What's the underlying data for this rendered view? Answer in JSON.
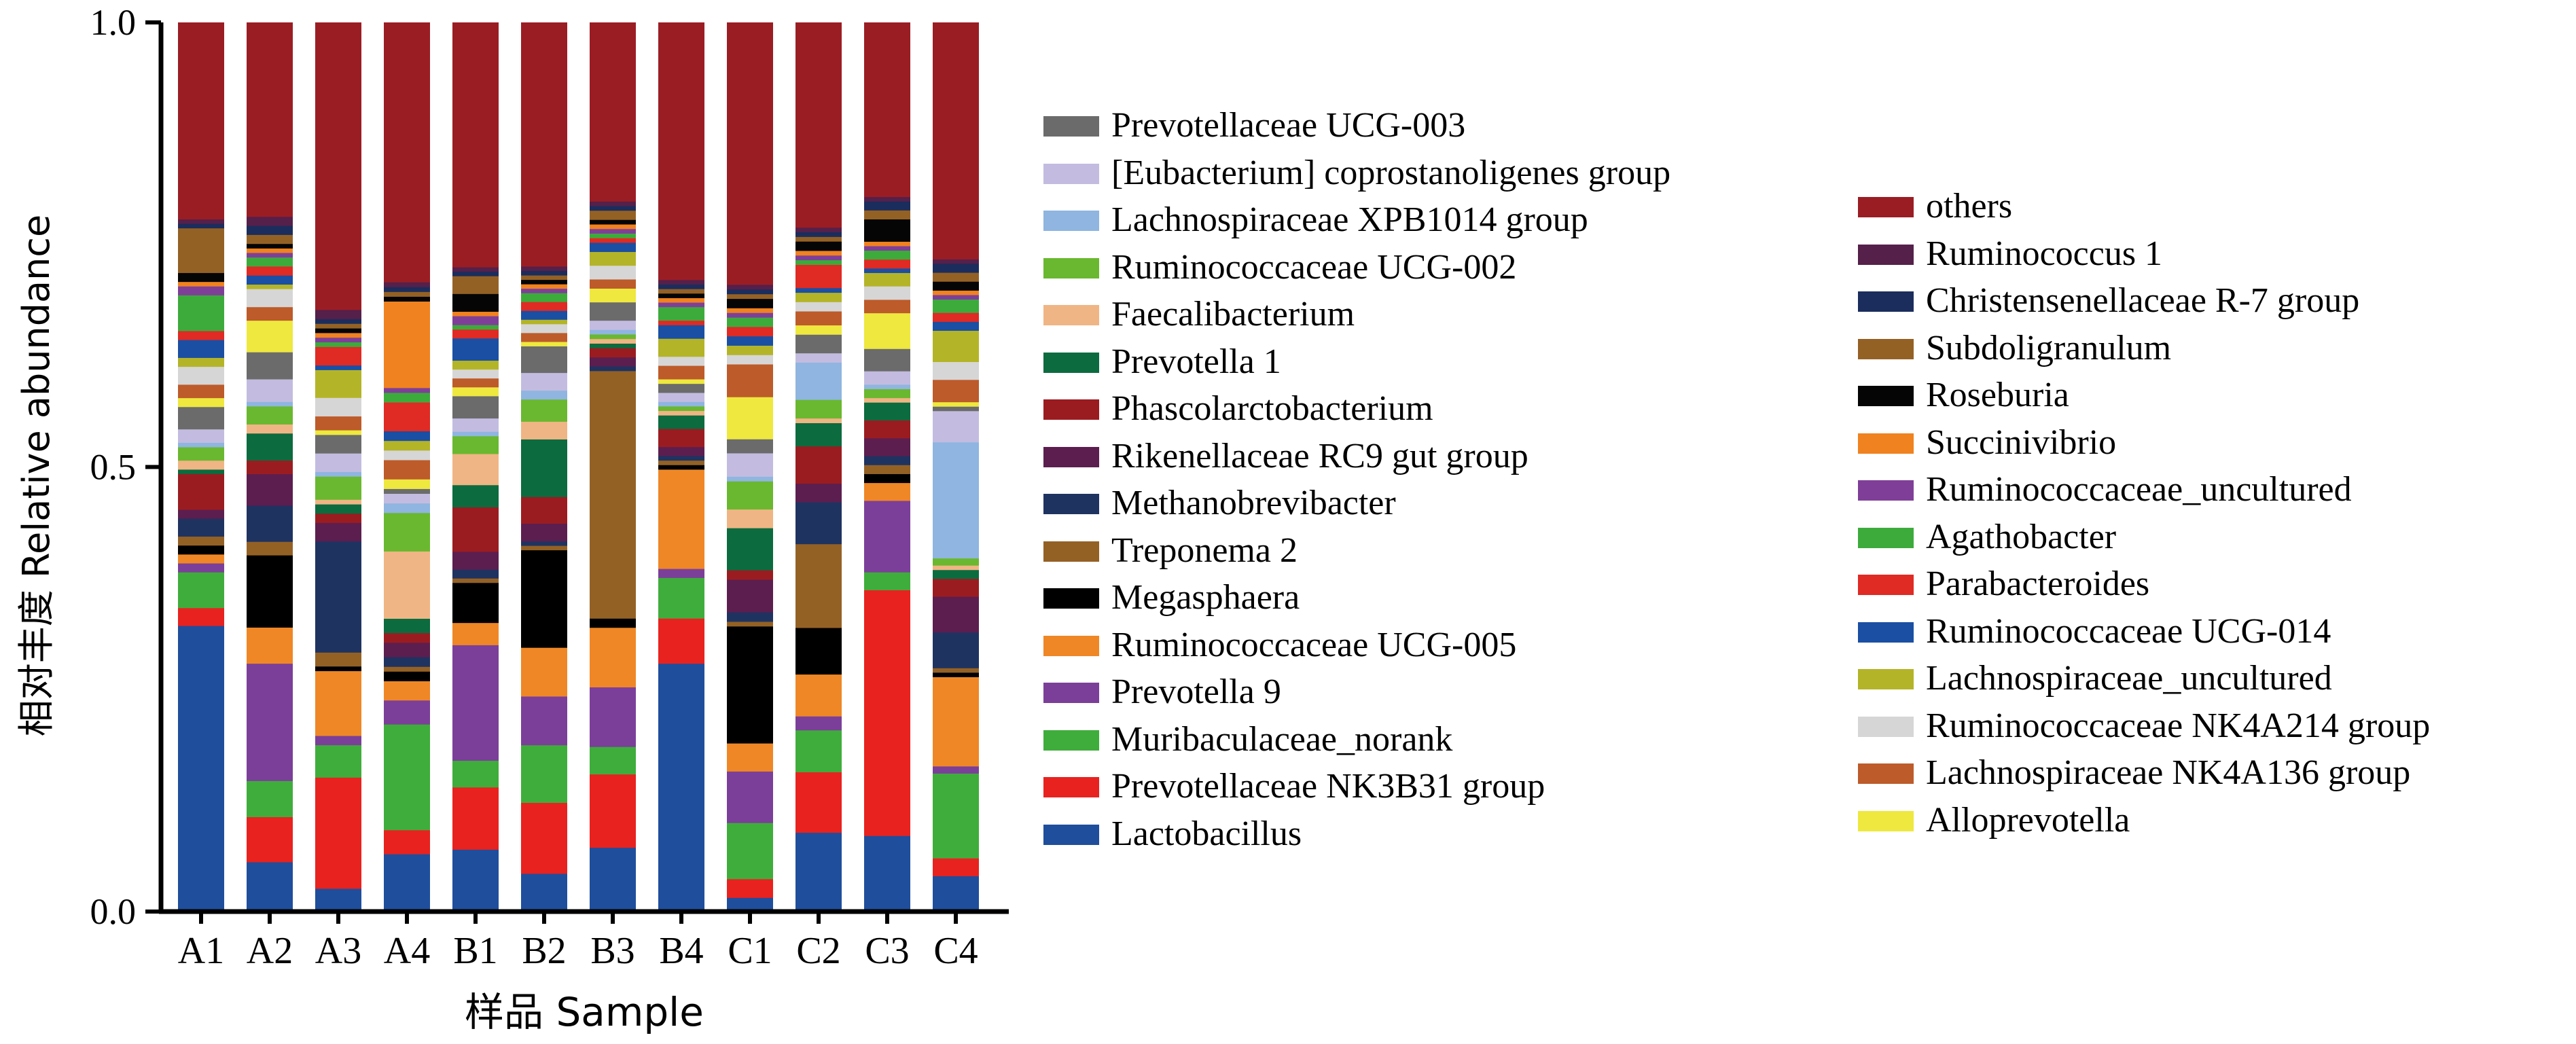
{
  "chart_data": {
    "type": "bar",
    "stacked": true,
    "ylabel": "相对丰度  Relative abundance",
    "xlabel": "样品  Sample",
    "ylim": [
      0,
      1.0
    ],
    "y_ticks": [
      "0.0",
      "0.5",
      "1.0"
    ],
    "categories": [
      "A1",
      "A2",
      "A3",
      "A4",
      "B1",
      "B2",
      "B3",
      "B4",
      "C1",
      "C2",
      "C3",
      "C4"
    ],
    "series": [
      {
        "name": "Lactobacillus",
        "color": "#1f4e9c",
        "values": [
          0.32,
          0.055,
          0.025,
          0.06,
          0.07,
          0.043,
          0.07,
          0.275,
          0.015,
          0.085,
          0.085,
          0.04
        ]
      },
      {
        "name": "Prevotellaceae NK3B31 group",
        "color": "#e8221f",
        "values": [
          0.02,
          0.05,
          0.12,
          0.025,
          0.07,
          0.08,
          0.08,
          0.05,
          0.02,
          0.065,
          0.275,
          0.02
        ]
      },
      {
        "name": "Muribaculaceae_norank",
        "color": "#3fad3c",
        "values": [
          0.04,
          0.04,
          0.035,
          0.11,
          0.03,
          0.065,
          0.03,
          0.045,
          0.06,
          0.045,
          0.02,
          0.095
        ]
      },
      {
        "name": "Prevotella 9",
        "color": "#7b3f99",
        "values": [
          0.01,
          0.13,
          0.01,
          0.025,
          0.13,
          0.055,
          0.065,
          0.01,
          0.055,
          0.015,
          0.08,
          0.008
        ]
      },
      {
        "name": "Ruminococcaceae UCG-005",
        "color": "#ef8726",
        "values": [
          0.01,
          0.04,
          0.07,
          0.02,
          0.025,
          0.055,
          0.065,
          0.11,
          0.03,
          0.045,
          0.02,
          0.1
        ]
      },
      {
        "name": "Megasphaera",
        "color": "#000000",
        "values": [
          0.01,
          0.08,
          0.005,
          0.01,
          0.045,
          0.11,
          0.01,
          0.005,
          0.125,
          0.05,
          0.01,
          0.005
        ]
      },
      {
        "name": "Treponema 2",
        "color": "#946125",
        "values": [
          0.01,
          0.015,
          0.015,
          0.005,
          0.005,
          0.005,
          0.27,
          0.005,
          0.005,
          0.09,
          0.01,
          0.005
        ]
      },
      {
        "name": "Methanobrevibacter",
        "color": "#1f3361",
        "values": [
          0.02,
          0.04,
          0.12,
          0.01,
          0.01,
          0.005,
          0.005,
          0.005,
          0.01,
          0.045,
          0.01,
          0.04
        ]
      },
      {
        "name": "Rikenellaceae RC9 gut group",
        "color": "#5c1e4f",
        "values": [
          0.01,
          0.035,
          0.02,
          0.015,
          0.02,
          0.02,
          0.01,
          0.01,
          0.035,
          0.02,
          0.02,
          0.04
        ]
      },
      {
        "name": "Phascolarctobacterium",
        "color": "#9b1c20",
        "values": [
          0.04,
          0.015,
          0.01,
          0.01,
          0.05,
          0.03,
          0.01,
          0.02,
          0.01,
          0.04,
          0.02,
          0.02
        ]
      },
      {
        "name": "Prevotella 1",
        "color": "#0c6b3f",
        "values": [
          0.005,
          0.03,
          0.01,
          0.015,
          0.025,
          0.065,
          0.005,
          0.015,
          0.045,
          0.025,
          0.02,
          0.01
        ]
      },
      {
        "name": "Faecalibacterium",
        "color": "#f0b584",
        "values": [
          0.01,
          0.01,
          0.005,
          0.07,
          0.035,
          0.02,
          0.005,
          0.005,
          0.02,
          0.005,
          0.005,
          0.005
        ]
      },
      {
        "name": "Ruminococcaceae UCG-002",
        "color": "#6ab82f",
        "values": [
          0.015,
          0.02,
          0.025,
          0.04,
          0.02,
          0.025,
          0.005,
          0.005,
          0.03,
          0.02,
          0.01,
          0.008
        ]
      },
      {
        "name": "Lachnospiraceae XPB1014 group",
        "color": "#8fb5e0",
        "values": [
          0.005,
          0.005,
          0.005,
          0.01,
          0.005,
          0.01,
          0.005,
          0.005,
          0.005,
          0.04,
          0.005,
          0.13
        ]
      },
      {
        "name": "[Eubacterium] coprostanoligenes group",
        "color": "#c3bce0",
        "values": [
          0.015,
          0.025,
          0.02,
          0.01,
          0.015,
          0.02,
          0.01,
          0.01,
          0.025,
          0.01,
          0.015,
          0.035
        ]
      },
      {
        "name": "Prevotellaceae UCG-003",
        "color": "#6b6b6b",
        "values": [
          0.025,
          0.03,
          0.02,
          0.005,
          0.025,
          0.03,
          0.02,
          0.01,
          0.015,
          0.02,
          0.025,
          0.005
        ]
      },
      {
        "name": "Alloprevotella",
        "color": "#eee83f",
        "values": [
          0.01,
          0.035,
          0.005,
          0.01,
          0.01,
          0.005,
          0.015,
          0.005,
          0.045,
          0.01,
          0.04,
          0.005
        ]
      },
      {
        "name": "Lachnospiraceae NK4A136 group",
        "color": "#bd5b2a",
        "values": [
          0.015,
          0.015,
          0.015,
          0.02,
          0.01,
          0.01,
          0.01,
          0.015,
          0.035,
          0.015,
          0.015,
          0.025
        ]
      },
      {
        "name": "Ruminococcaceae NK4A214 group",
        "color": "#d6d6d6",
        "values": [
          0.02,
          0.02,
          0.02,
          0.01,
          0.01,
          0.01,
          0.015,
          0.01,
          0.01,
          0.01,
          0.015,
          0.02
        ]
      },
      {
        "name": "Lachnospiraceae_uncultured",
        "color": "#b4b428",
        "values": [
          0.01,
          0.005,
          0.03,
          0.01,
          0.01,
          0.005,
          0.015,
          0.02,
          0.01,
          0.01,
          0.015,
          0.035
        ]
      },
      {
        "name": "Ruminococcaceae UCG-014",
        "color": "#1a4fa3",
        "values": [
          0.02,
          0.01,
          0.005,
          0.01,
          0.025,
          0.01,
          0.01,
          0.015,
          0.01,
          0.005,
          0.005,
          0.01
        ]
      },
      {
        "name": "Parabacteroides",
        "color": "#e02a24",
        "values": [
          0.01,
          0.01,
          0.02,
          0.03,
          0.01,
          0.01,
          0.005,
          0.005,
          0.01,
          0.025,
          0.01,
          0.01
        ]
      },
      {
        "name": "Agathobacter",
        "color": "#3cab3c",
        "values": [
          0.04,
          0.01,
          0.005,
          0.01,
          0.005,
          0.01,
          0.005,
          0.015,
          0.01,
          0.005,
          0.01,
          0.015
        ]
      },
      {
        "name": "Ruminococcaceae_uncultured",
        "color": "#7f3f98",
        "values": [
          0.01,
          0.005,
          0.005,
          0.005,
          0.01,
          0.005,
          0.005,
          0.005,
          0.005,
          0.005,
          0.005,
          0.005
        ]
      },
      {
        "name": "Succinivibrio",
        "color": "#f08220",
        "values": [
          0.005,
          0.005,
          0.005,
          0.09,
          0.005,
          0.005,
          0.005,
          0.005,
          0.005,
          0.005,
          0.005,
          0.005
        ]
      },
      {
        "name": "Roseburia",
        "color": "#050505",
        "values": [
          0.01,
          0.005,
          0.005,
          0.005,
          0.02,
          0.005,
          0.005,
          0.005,
          0.01,
          0.01,
          0.025,
          0.01
        ]
      },
      {
        "name": "Subdoligranulum",
        "color": "#946125",
        "values": [
          0.05,
          0.01,
          0.005,
          0.005,
          0.02,
          0.005,
          0.01,
          0.005,
          0.005,
          0.005,
          0.01,
          0.01
        ]
      },
      {
        "name": "Christensenellaceae R-7 group",
        "color": "#1b2d5c",
        "values": [
          0.005,
          0.01,
          0.005,
          0.005,
          0.005,
          0.005,
          0.005,
          0.005,
          0.005,
          0.005,
          0.01,
          0.01
        ]
      },
      {
        "name": "Ruminococcus 1",
        "color": "#55204a",
        "values": [
          0.005,
          0.01,
          0.01,
          0.005,
          0.005,
          0.005,
          0.005,
          0.005,
          0.005,
          0.005,
          0.005,
          0.005
        ]
      },
      {
        "name": "others",
        "color": "#9b1d24",
        "values": [
          0.22,
          0.215,
          0.31,
          0.27,
          0.275,
          0.275,
          0.195,
          0.285,
          0.28,
          0.22,
          0.195,
          0.265
        ]
      }
    ],
    "legend_left": [
      "Prevotellaceae UCG-003",
      "[Eubacterium] coprostanoligenes group",
      "Lachnospiraceae XPB1014 group",
      "Ruminococcaceae UCG-002",
      "Faecalibacterium",
      "Prevotella 1",
      "Phascolarctobacterium",
      "Rikenellaceae RC9 gut group",
      "Methanobrevibacter",
      "Treponema 2",
      "Megasphaera",
      "Ruminococcaceae UCG-005",
      "Prevotella 9",
      "Muribaculaceae_norank",
      "Prevotellaceae NK3B31 group",
      "Lactobacillus"
    ],
    "legend_right": [
      "others",
      "Ruminococcus 1",
      "Christensenellaceae R-7 group",
      "Subdoligranulum",
      "Roseburia",
      "Succinivibrio",
      "Ruminococcaceae_uncultured",
      "Agathobacter",
      "Parabacteroides",
      "Ruminococcaceae UCG-014",
      "Lachnospiraceae_uncultured",
      "Ruminococcaceae NK4A214 group",
      "Lachnospiraceae NK4A136 group",
      "Alloprevotella"
    ]
  }
}
